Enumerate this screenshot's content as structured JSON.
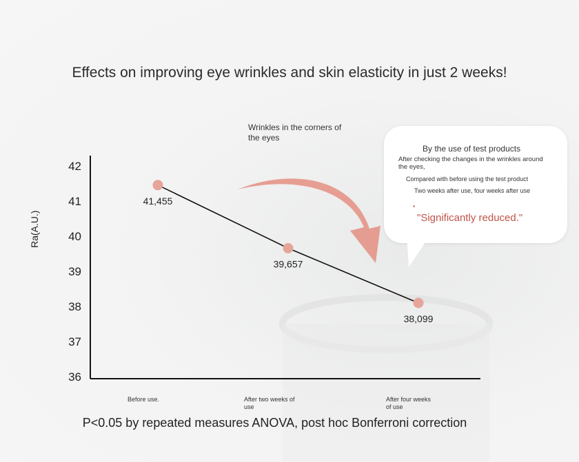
{
  "title": "Effects on improving eye wrinkles and skin elasticity in just 2 weeks!",
  "footnote": "P<0.05 by repeated measures ANOVA, post hoc Bonferroni correction",
  "callout": {
    "heading": "By the use of test products",
    "line1": "After checking the changes in the wrinkles around the eyes,",
    "line2": "Compared with before using the test product",
    "line3": "Two weeks after use, four weeks after use",
    "quote": "\"Significantly reduced.\""
  },
  "colors": {
    "marker": "#e6a599",
    "arrow": "#e49587",
    "line": "#111111",
    "accent_text": "#c0544a"
  },
  "chart_data": {
    "type": "line",
    "title": "Wrinkles in the corners of the eyes",
    "xlabel": "",
    "ylabel": "Ra(A.U.)",
    "categories": [
      "Before use.",
      "After two weeks of use",
      "After four weeks of use"
    ],
    "values": [
      41.455,
      39.657,
      38.099
    ],
    "data_labels": [
      "41,455",
      "39,657",
      "38,099"
    ],
    "ylim": [
      36,
      42
    ],
    "yticks": [
      36,
      37,
      38,
      39,
      40,
      41,
      42
    ],
    "grid": false
  }
}
